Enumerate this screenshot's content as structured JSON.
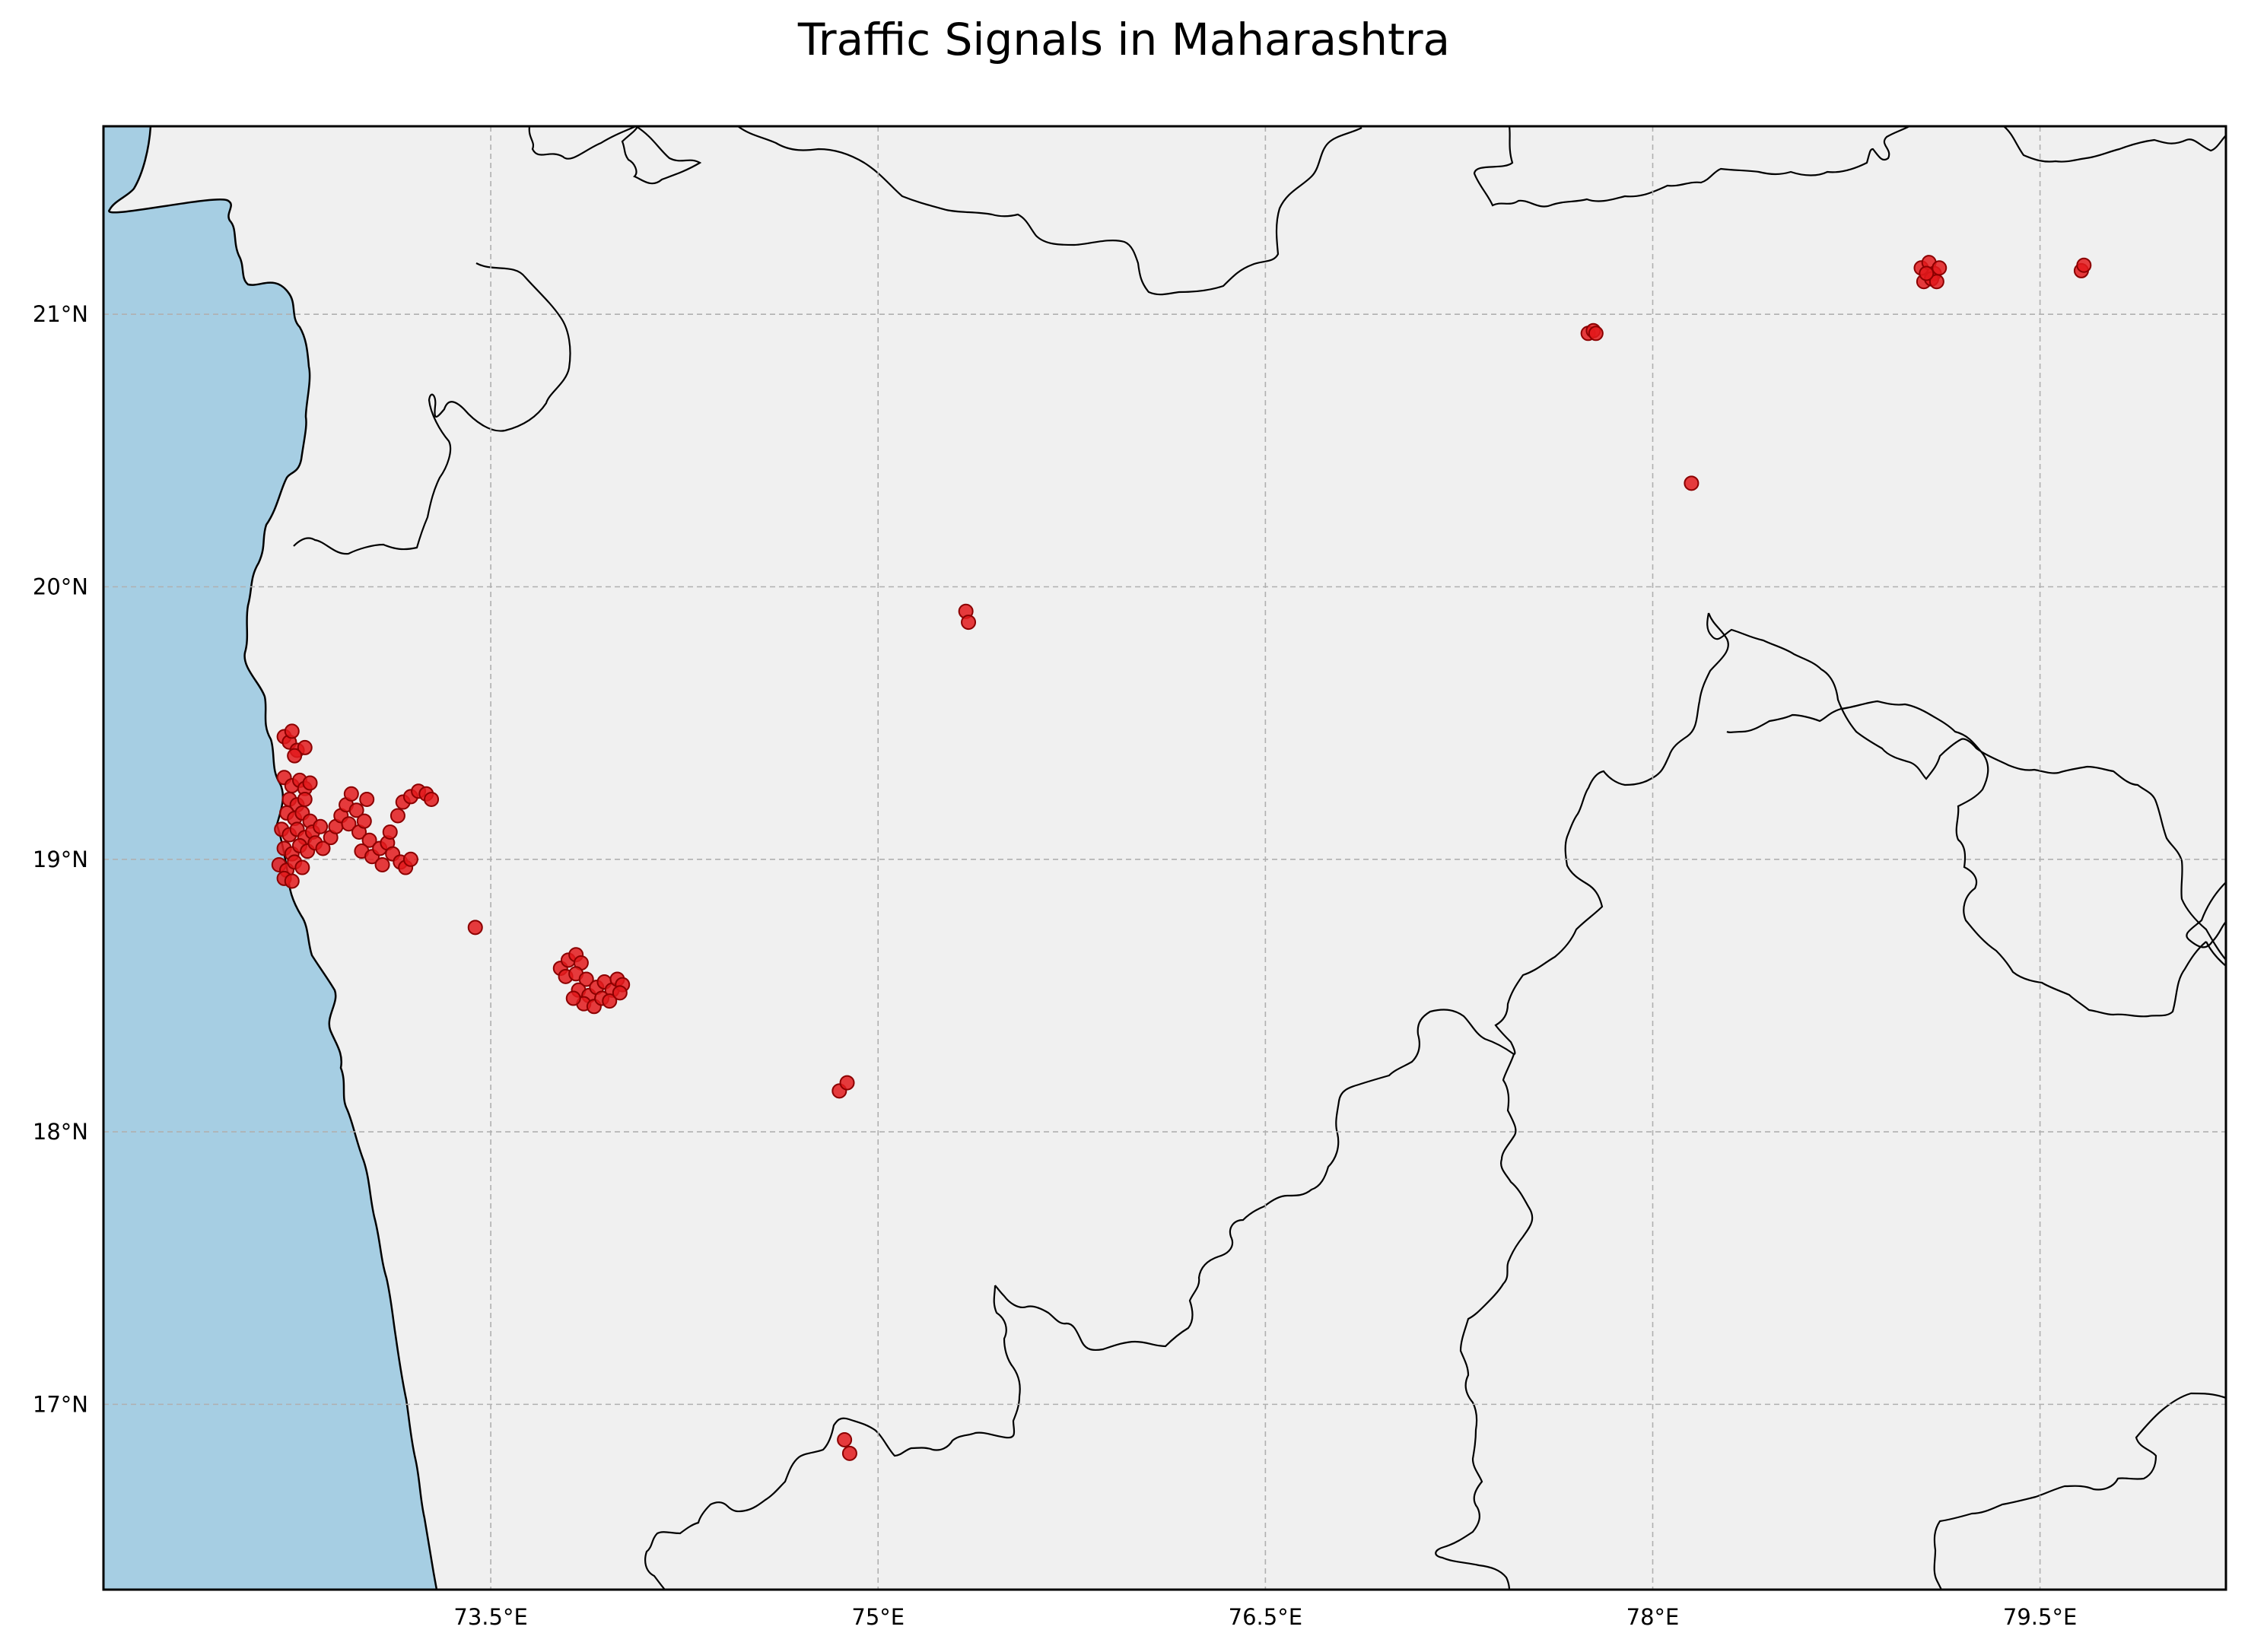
{
  "title": "Traffic Signals in Maharashtra",
  "colors": {
    "sea": "#a6cee3",
    "land": "#f0f0f0",
    "border": "#000000",
    "grid": "#b0b0b0",
    "marker_fill": "#e31a1c",
    "marker_edge": "#8b0000"
  },
  "chart_data": {
    "type": "scatter",
    "title": "Traffic Signals in Maharashtra",
    "projection": "PlateCarree",
    "xlim": [
      72.0,
      80.22
    ],
    "ylim": [
      16.32,
      21.69
    ],
    "grid": true,
    "x_ticks": [
      {
        "value": 73.5,
        "label": "73.5°E"
      },
      {
        "value": 75.0,
        "label": "75°E"
      },
      {
        "value": 76.5,
        "label": "76.5°E"
      },
      {
        "value": 78.0,
        "label": "78°E"
      },
      {
        "value": 79.5,
        "label": "79.5°E"
      }
    ],
    "y_ticks": [
      {
        "value": 21,
        "label": "21°N"
      },
      {
        "value": 20,
        "label": "20°N"
      },
      {
        "value": 19,
        "label": "19°N"
      },
      {
        "value": 18,
        "label": "18°N"
      },
      {
        "value": 17,
        "label": "17°N"
      }
    ],
    "points": [
      {
        "lon": 72.7,
        "lat": 19.45
      },
      {
        "lon": 72.72,
        "lat": 19.43
      },
      {
        "lon": 72.73,
        "lat": 19.47
      },
      {
        "lon": 72.75,
        "lat": 19.4
      },
      {
        "lon": 72.78,
        "lat": 19.41
      },
      {
        "lon": 72.74,
        "lat": 19.38
      },
      {
        "lon": 72.7,
        "lat": 19.3
      },
      {
        "lon": 72.73,
        "lat": 19.27
      },
      {
        "lon": 72.76,
        "lat": 19.29
      },
      {
        "lon": 72.78,
        "lat": 19.26
      },
      {
        "lon": 72.8,
        "lat": 19.28
      },
      {
        "lon": 72.72,
        "lat": 19.22
      },
      {
        "lon": 72.75,
        "lat": 19.2
      },
      {
        "lon": 72.78,
        "lat": 19.22
      },
      {
        "lon": 72.71,
        "lat": 19.17
      },
      {
        "lon": 72.74,
        "lat": 19.15
      },
      {
        "lon": 72.77,
        "lat": 19.17
      },
      {
        "lon": 72.8,
        "lat": 19.14
      },
      {
        "lon": 72.69,
        "lat": 19.11
      },
      {
        "lon": 72.72,
        "lat": 19.09
      },
      {
        "lon": 72.75,
        "lat": 19.11
      },
      {
        "lon": 72.78,
        "lat": 19.08
      },
      {
        "lon": 72.81,
        "lat": 19.1
      },
      {
        "lon": 72.84,
        "lat": 19.12
      },
      {
        "lon": 72.7,
        "lat": 19.04
      },
      {
        "lon": 72.73,
        "lat": 19.02
      },
      {
        "lon": 72.76,
        "lat": 19.05
      },
      {
        "lon": 72.79,
        "lat": 19.03
      },
      {
        "lon": 72.82,
        "lat": 19.06
      },
      {
        "lon": 72.85,
        "lat": 19.04
      },
      {
        "lon": 72.68,
        "lat": 18.98
      },
      {
        "lon": 72.71,
        "lat": 18.96
      },
      {
        "lon": 72.74,
        "lat": 18.99
      },
      {
        "lon": 72.77,
        "lat": 18.97
      },
      {
        "lon": 72.7,
        "lat": 18.93
      },
      {
        "lon": 72.73,
        "lat": 18.92
      },
      {
        "lon": 72.88,
        "lat": 19.08
      },
      {
        "lon": 72.9,
        "lat": 19.12
      },
      {
        "lon": 72.92,
        "lat": 19.16
      },
      {
        "lon": 72.94,
        "lat": 19.2
      },
      {
        "lon": 72.96,
        "lat": 19.24
      },
      {
        "lon": 72.98,
        "lat": 19.18
      },
      {
        "lon": 72.95,
        "lat": 19.13
      },
      {
        "lon": 72.99,
        "lat": 19.1
      },
      {
        "lon": 73.01,
        "lat": 19.14
      },
      {
        "lon": 73.03,
        "lat": 19.07
      },
      {
        "lon": 73.0,
        "lat": 19.03
      },
      {
        "lon": 73.04,
        "lat": 19.01
      },
      {
        "lon": 73.07,
        "lat": 19.04
      },
      {
        "lon": 73.1,
        "lat": 19.06
      },
      {
        "lon": 73.12,
        "lat": 19.02
      },
      {
        "lon": 73.15,
        "lat": 18.99
      },
      {
        "lon": 73.08,
        "lat": 18.98
      },
      {
        "lon": 73.11,
        "lat": 19.1
      },
      {
        "lon": 73.14,
        "lat": 19.16
      },
      {
        "lon": 73.16,
        "lat": 19.21
      },
      {
        "lon": 73.19,
        "lat": 19.23
      },
      {
        "lon": 73.22,
        "lat": 19.25
      },
      {
        "lon": 73.25,
        "lat": 19.24
      },
      {
        "lon": 73.27,
        "lat": 19.22
      },
      {
        "lon": 73.17,
        "lat": 18.97
      },
      {
        "lon": 73.19,
        "lat": 19.0
      },
      {
        "lon": 73.02,
        "lat": 19.22
      },
      {
        "lon": 73.44,
        "lat": 18.75
      },
      {
        "lon": 73.77,
        "lat": 18.6
      },
      {
        "lon": 73.8,
        "lat": 18.63
      },
      {
        "lon": 73.83,
        "lat": 18.65
      },
      {
        "lon": 73.85,
        "lat": 18.62
      },
      {
        "lon": 73.79,
        "lat": 18.57
      },
      {
        "lon": 73.83,
        "lat": 18.58
      },
      {
        "lon": 73.87,
        "lat": 18.56
      },
      {
        "lon": 73.84,
        "lat": 18.52
      },
      {
        "lon": 73.88,
        "lat": 18.5
      },
      {
        "lon": 73.91,
        "lat": 18.53
      },
      {
        "lon": 73.94,
        "lat": 18.55
      },
      {
        "lon": 73.97,
        "lat": 18.52
      },
      {
        "lon": 73.99,
        "lat": 18.56
      },
      {
        "lon": 74.01,
        "lat": 18.54
      },
      {
        "lon": 73.86,
        "lat": 18.47
      },
      {
        "lon": 73.9,
        "lat": 18.46
      },
      {
        "lon": 73.93,
        "lat": 18.49
      },
      {
        "lon": 73.96,
        "lat": 18.48
      },
      {
        "lon": 73.82,
        "lat": 18.49
      },
      {
        "lon": 74.0,
        "lat": 18.51
      },
      {
        "lon": 74.85,
        "lat": 18.15
      },
      {
        "lon": 74.88,
        "lat": 18.18
      },
      {
        "lon": 74.87,
        "lat": 16.87
      },
      {
        "lon": 74.89,
        "lat": 16.82
      },
      {
        "lon": 75.34,
        "lat": 19.91
      },
      {
        "lon": 75.35,
        "lat": 19.87
      },
      {
        "lon": 77.75,
        "lat": 20.93
      },
      {
        "lon": 77.77,
        "lat": 20.94
      },
      {
        "lon": 77.78,
        "lat": 20.93
      },
      {
        "lon": 78.15,
        "lat": 20.38
      },
      {
        "lon": 79.04,
        "lat": 21.17
      },
      {
        "lon": 79.07,
        "lat": 21.19
      },
      {
        "lon": 79.09,
        "lat": 21.15
      },
      {
        "lon": 79.05,
        "lat": 21.12
      },
      {
        "lon": 79.08,
        "lat": 21.13
      },
      {
        "lon": 79.11,
        "lat": 21.17
      },
      {
        "lon": 79.1,
        "lat": 21.12
      },
      {
        "lon": 79.06,
        "lat": 21.15
      },
      {
        "lon": 79.66,
        "lat": 21.16
      },
      {
        "lon": 79.67,
        "lat": 21.18
      }
    ]
  }
}
